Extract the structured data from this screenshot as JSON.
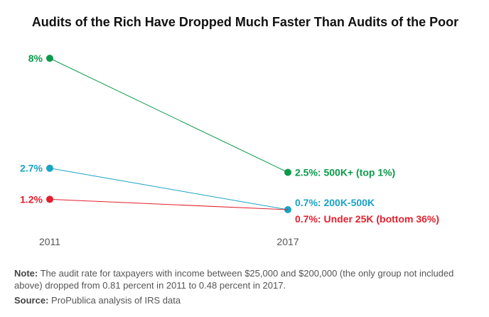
{
  "chart_data": {
    "type": "line",
    "title": "Audits of the Rich Have Dropped Much Faster Than Audits of the Poor",
    "categories": [
      "2011",
      "2017"
    ],
    "series": [
      {
        "name": "500K+ (top 1%)",
        "values": [
          8,
          2.5
        ],
        "labels": [
          "8%",
          "2.5%: 500K+ (top 1%)"
        ],
        "color": "#0b9a4a"
      },
      {
        "name": "200K-500K",
        "values": [
          2.7,
          0.7
        ],
        "labels": [
          "2.7%",
          "0.7%: 200K-500K"
        ],
        "color": "#1aa3c4"
      },
      {
        "name": "Under 25K (bottom 36%)",
        "values": [
          1.2,
          0.7
        ],
        "labels": [
          "1.2%",
          "0.7%: Under 25K (bottom 36%)"
        ],
        "color": "#e2202e"
      }
    ],
    "grid": false
  },
  "note": {
    "label": "Note:",
    "text": " The audit rate for taxpayers with income between $25,000 and $200,000 (the only group not included above) dropped from 0.81 percent in 2011 to 0.48 percent in 2017."
  },
  "source": {
    "label": "Source:",
    "text": " ProPublica analysis of IRS data"
  }
}
